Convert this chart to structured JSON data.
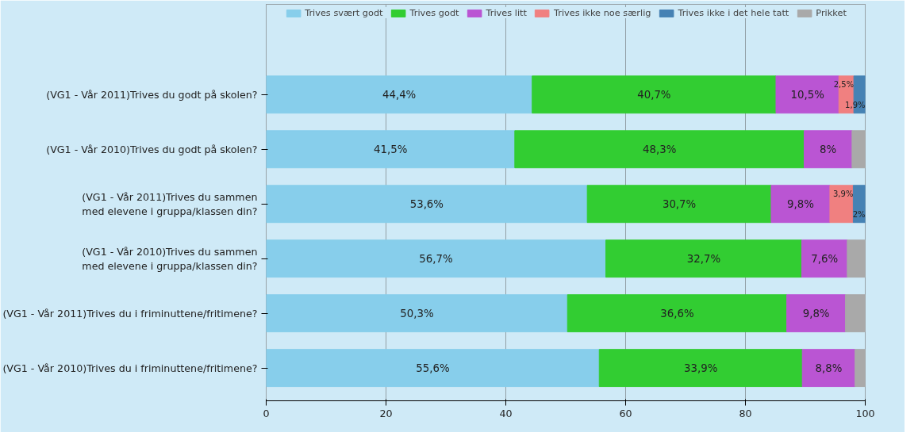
{
  "chart_data": {
    "type": "bar",
    "orientation": "horizontal",
    "stacked": true,
    "categories": [
      "(VG1 - Vår 2011)Trives du godt på skolen?",
      "(VG1 - Vår 2010)Trives du godt på skolen?",
      "(VG1 - Vår 2011)Trives du sammen med elevene i gruppa/klassen din?",
      "(VG1 - Vår 2010)Trives du sammen med elevene i gruppa/klassen din?",
      "(VG1 - Vår 2011)Trives du i friminuttene/fritimene?",
      "(VG1 - Vår 2010)Trives du i friminuttene/fritimene?"
    ],
    "series": [
      {
        "name": "Trives svært godt",
        "color": "#87ceeb",
        "values": [
          44.4,
          41.5,
          53.6,
          56.7,
          50.3,
          55.6
        ],
        "value_labels": [
          "44,4%",
          "41,5%",
          "53,6%",
          "56,7%",
          "50,3%",
          "55,6%"
        ]
      },
      {
        "name": "Trives godt",
        "color": "#32cd32",
        "values": [
          40.7,
          48.3,
          30.7,
          32.7,
          36.6,
          33.9
        ],
        "value_labels": [
          "40,7%",
          "48,3%",
          "30,7%",
          "32,7%",
          "36,6%",
          "33,9%"
        ]
      },
      {
        "name": "Trives litt",
        "color": "#ba55d3",
        "values": [
          10.5,
          8,
          9.8,
          7.6,
          9.8,
          8.8
        ],
        "value_labels": [
          "10,5%",
          "8%",
          "9,8%",
          "7,6%",
          "9,8%",
          "8,8%"
        ]
      },
      {
        "name": "Trives ikke noe særlig",
        "color": "#f08080",
        "values": [
          2.5,
          null,
          3.9,
          null,
          null,
          null
        ],
        "value_labels": [
          "2,5%",
          null,
          "3,9%",
          null,
          null,
          null
        ]
      },
      {
        "name": "Trives ikke i det hele tatt",
        "color": "#4682b4",
        "values": [
          1.9,
          null,
          2,
          null,
          null,
          null
        ],
        "value_labels": [
          "1,9%",
          null,
          "2%",
          null,
          null,
          null
        ]
      },
      {
        "name": "Prikket",
        "color": "#a9a9a9",
        "values": [
          null,
          2.2,
          null,
          3,
          3.3,
          1.7
        ],
        "value_labels": [
          null,
          null,
          null,
          null,
          null,
          null
        ]
      }
    ],
    "xlim": [
      0,
      100
    ],
    "xticks": [
      0,
      20,
      40,
      60,
      80,
      100
    ],
    "grid": "x",
    "legend": "top"
  }
}
